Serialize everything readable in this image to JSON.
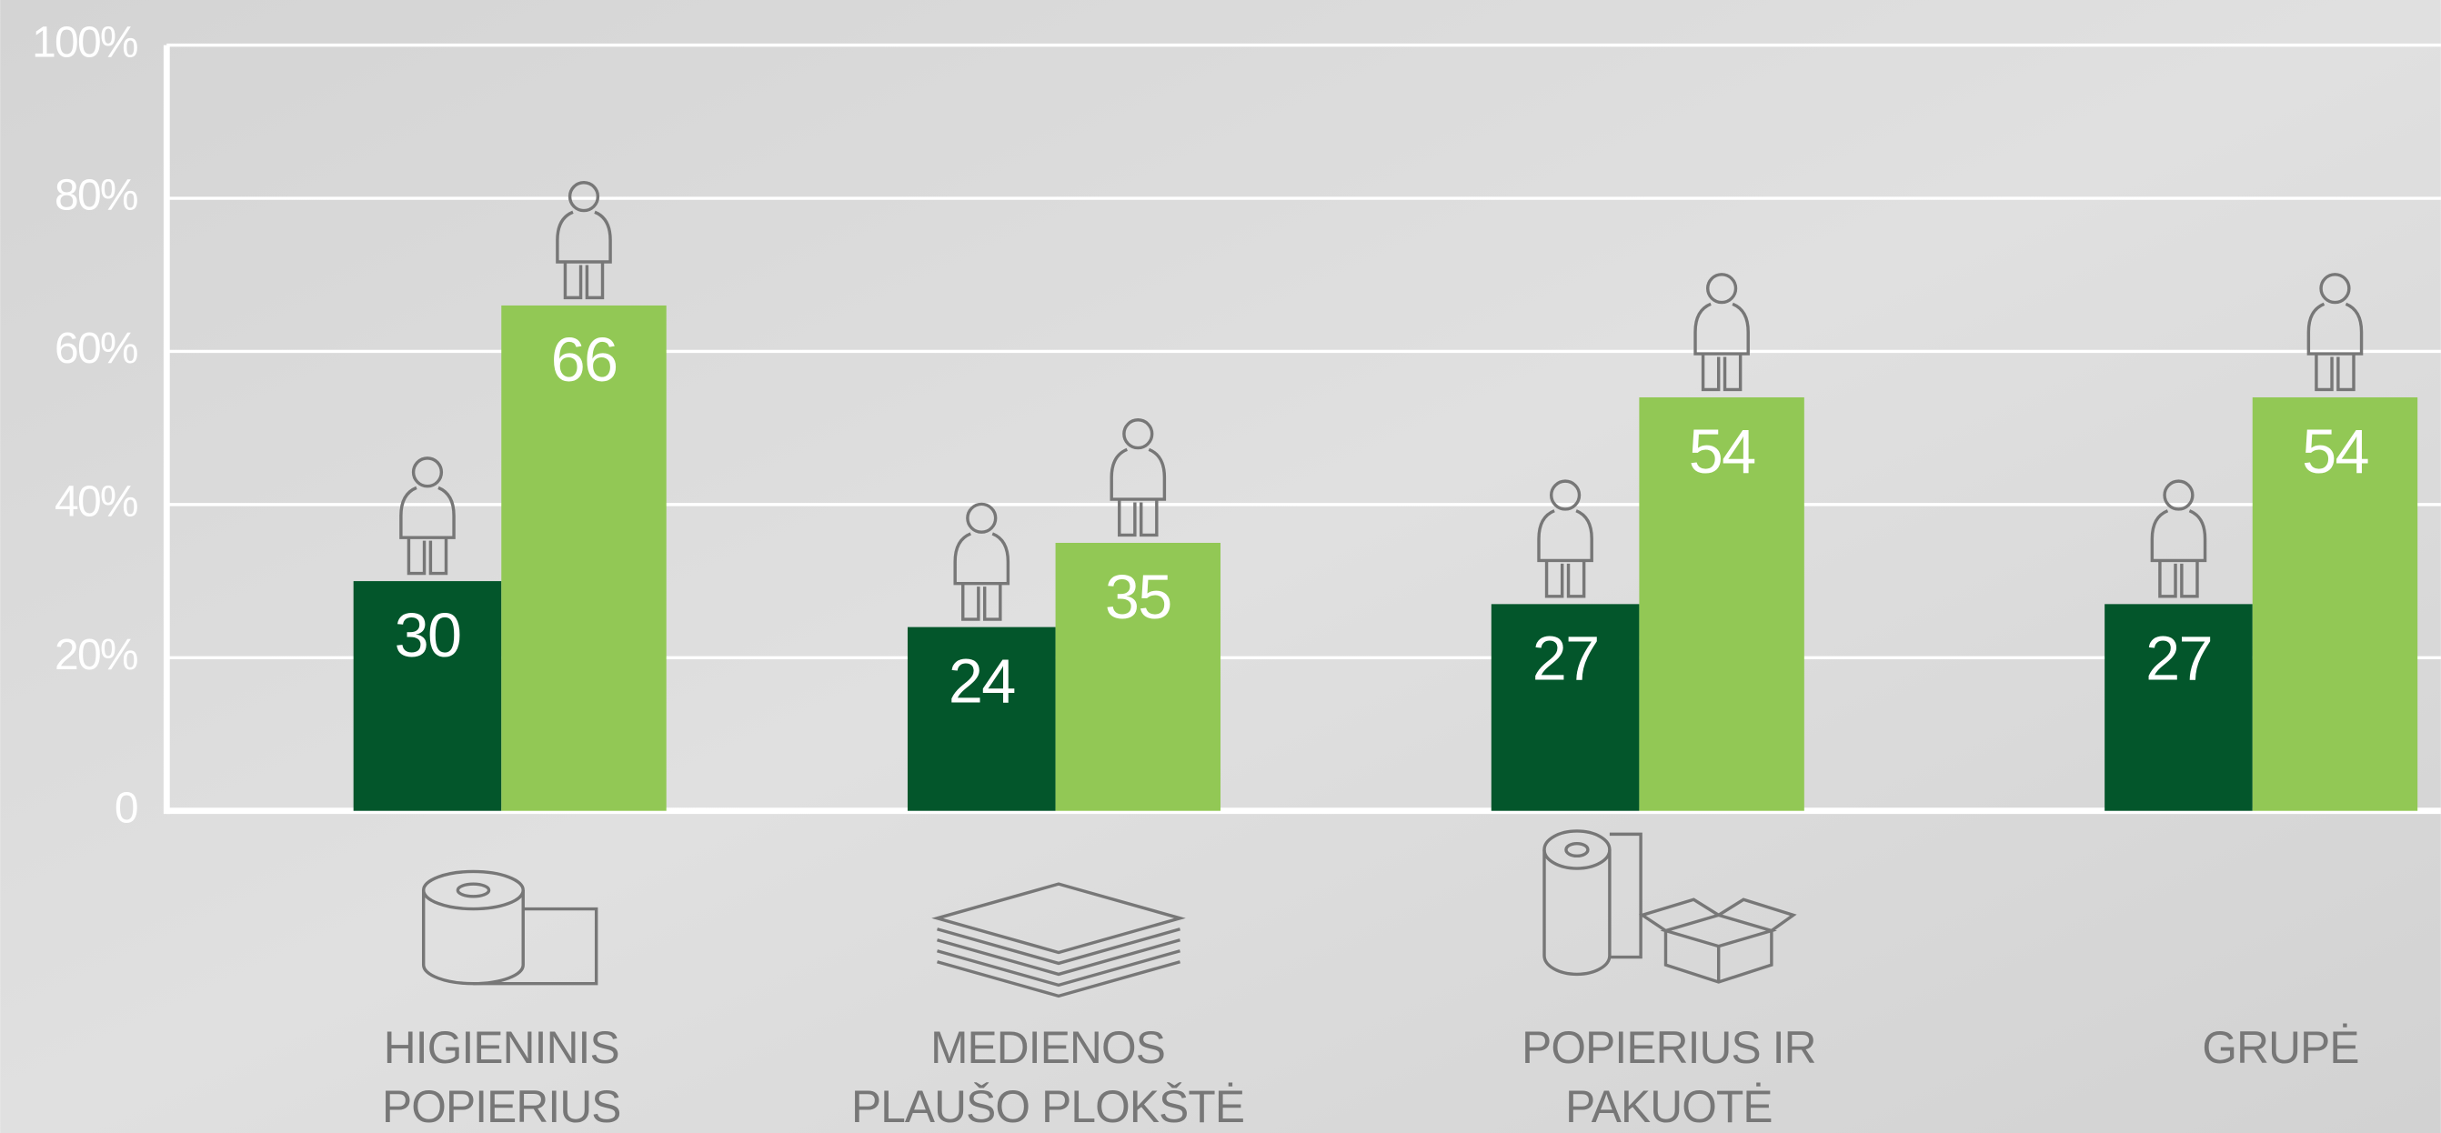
{
  "chart_data": {
    "type": "bar",
    "categories": [
      "HIGIENINIS POPIERIUS",
      "MEDIENOS PLAUŠO PLOKŠTĖ",
      "POPIERIUS IR PAKUOTĖ",
      "GRUPĖ"
    ],
    "series": [
      {
        "color": "#03562b",
        "values": [
          30,
          24,
          27,
          27
        ]
      },
      {
        "color": "#92c855",
        "values": [
          66,
          35,
          54,
          54
        ]
      }
    ],
    "ylim": [
      0,
      100
    ],
    "yticks": [
      0,
      {
        "value": 20,
        "label": "20%"
      },
      {
        "value": 40,
        "label": "40%"
      },
      {
        "value": 60,
        "label": "60%"
      },
      {
        "value": 80,
        "label": "80%"
      },
      {
        "value": 100,
        "label": "100%"
      }
    ],
    "grid": true
  }
}
